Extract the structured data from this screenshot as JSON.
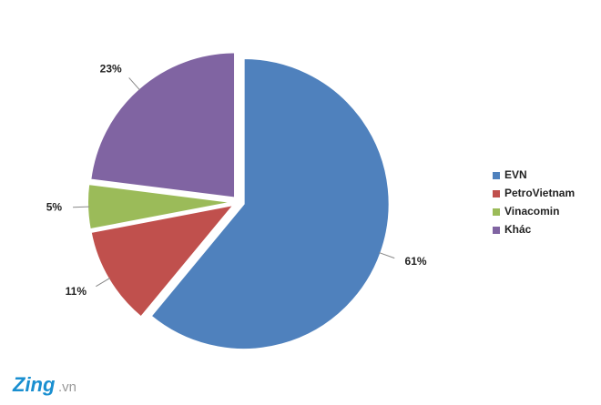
{
  "chart_data": {
    "type": "pie",
    "categories": [
      "EVN",
      "PetroVietnam",
      "Vinacomin",
      "Khác"
    ],
    "values": [
      61,
      11,
      5,
      23
    ],
    "value_labels": [
      "61%",
      "11%",
      "5%",
      "23%"
    ],
    "colors": [
      "#4f81bd",
      "#c0504d",
      "#9bbb59",
      "#8064a2"
    ],
    "legend": "right"
  },
  "watermark": {
    "brand": "Zing",
    "domain": ".vn"
  }
}
